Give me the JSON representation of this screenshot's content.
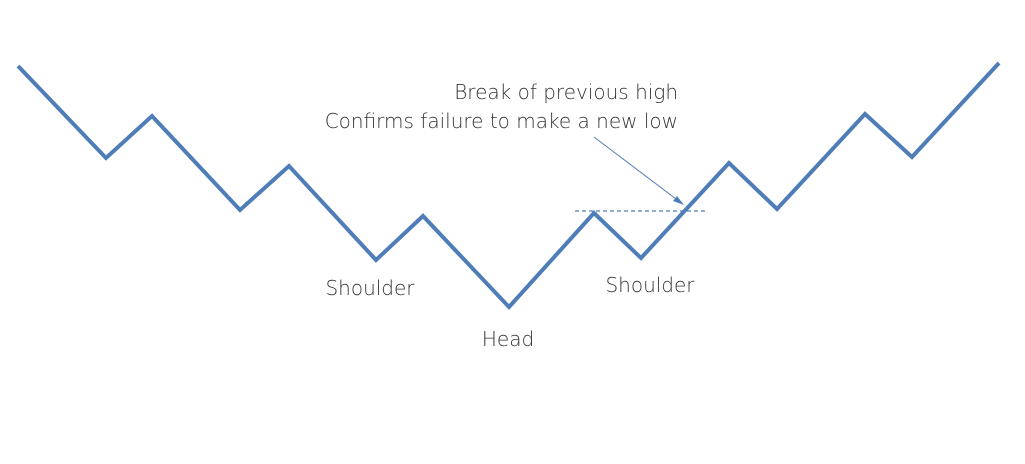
{
  "diagram": {
    "type": "inverse-head-and-shoulders",
    "line_color": "#4F7DB8",
    "text_color": "#333333",
    "labels": {
      "left_shoulder": "Shoulder",
      "head": "Head",
      "right_shoulder": "Shoulder"
    },
    "annotation": {
      "line1": "Break of previous high",
      "line2": "Confirms failure to make a new low"
    }
  }
}
